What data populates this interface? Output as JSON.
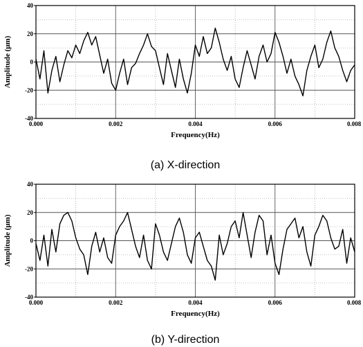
{
  "chart_data": [
    {
      "type": "line",
      "caption": "(a) X-direction",
      "xlabel": "Frequency(Hz)",
      "ylabel": "Amplitude (μm)",
      "xlim": [
        0.0,
        0.008
      ],
      "ylim": [
        -40,
        40
      ],
      "xticks": [
        "0.000",
        "0.002",
        "0.004",
        "0.006",
        "0.008"
      ],
      "yticks": [
        "40",
        "20",
        "0",
        "-20",
        "-40"
      ],
      "grid": true,
      "series": [
        {
          "color": "#000000",
          "x": [
            0.0,
            0.0001,
            0.0002,
            0.0003,
            0.0004,
            0.0005,
            0.0006,
            0.0007,
            0.0008,
            0.0009,
            0.001,
            0.0011,
            0.0012,
            0.0013,
            0.0014,
            0.0015,
            0.0016,
            0.0017,
            0.0018,
            0.0019,
            0.002,
            0.0021,
            0.0022,
            0.0023,
            0.0024,
            0.0025,
            0.0026,
            0.0027,
            0.0028,
            0.0029,
            0.003,
            0.0031,
            0.0032,
            0.0033,
            0.0034,
            0.0035,
            0.0036,
            0.0037,
            0.0038,
            0.0039,
            0.004,
            0.0041,
            0.0042,
            0.0043,
            0.0044,
            0.0045,
            0.0046,
            0.0047,
            0.0048,
            0.0049,
            0.005,
            0.0051,
            0.0052,
            0.0053,
            0.0054,
            0.0055,
            0.0056,
            0.0057,
            0.0058,
            0.0059,
            0.006,
            0.0061,
            0.0062,
            0.0063,
            0.0064,
            0.0065,
            0.0066,
            0.0067,
            0.0068,
            0.0069,
            0.007,
            0.0071,
            0.0072,
            0.0073,
            0.0074,
            0.0075,
            0.0076,
            0.0077,
            0.0078,
            0.0079,
            0.008
          ],
          "values": [
            2,
            -12,
            8,
            -22,
            -6,
            4,
            -14,
            -2,
            8,
            3,
            12,
            6,
            15,
            21,
            12,
            18,
            5,
            -8,
            2,
            -15,
            -20,
            -8,
            2,
            -16,
            -4,
            -1,
            6,
            12,
            20,
            11,
            8,
            -4,
            -16,
            6,
            -6,
            -18,
            2,
            -12,
            -22,
            -8,
            12,
            4,
            18,
            6,
            10,
            24,
            14,
            2,
            -6,
            4,
            -12,
            -18,
            -4,
            8,
            -2,
            -12,
            4,
            12,
            0,
            6,
            21,
            14,
            4,
            -8,
            2,
            -10,
            -16,
            -24,
            -6,
            4,
            12,
            -4,
            2,
            14,
            22,
            10,
            4,
            -6,
            -14,
            -6,
            -2
          ]
        }
      ]
    },
    {
      "type": "line",
      "caption": "(b) Y-direction",
      "xlabel": "Frequency(Hz)",
      "ylabel": "Amplitude (μm)",
      "xlim": [
        0.0,
        0.008
      ],
      "ylim": [
        -40,
        40
      ],
      "xticks": [
        "0.000",
        "0.002",
        "0.004",
        "0.006",
        "0.008"
      ],
      "yticks": [
        "40",
        "20",
        "0",
        "-20",
        "-40"
      ],
      "grid": true,
      "series": [
        {
          "color": "#000000",
          "x": [
            0.0,
            0.0001,
            0.0002,
            0.0003,
            0.0004,
            0.0005,
            0.0006,
            0.0007,
            0.0008,
            0.0009,
            0.001,
            0.0011,
            0.0012,
            0.0013,
            0.0014,
            0.0015,
            0.0016,
            0.0017,
            0.0018,
            0.0019,
            0.002,
            0.0021,
            0.0022,
            0.0023,
            0.0024,
            0.0025,
            0.0026,
            0.0027,
            0.0028,
            0.0029,
            0.003,
            0.0031,
            0.0032,
            0.0033,
            0.0034,
            0.0035,
            0.0036,
            0.0037,
            0.0038,
            0.0039,
            0.004,
            0.0041,
            0.0042,
            0.0043,
            0.0044,
            0.0045,
            0.0046,
            0.0047,
            0.0048,
            0.0049,
            0.005,
            0.0051,
            0.0052,
            0.0053,
            0.0054,
            0.0055,
            0.0056,
            0.0057,
            0.0058,
            0.0059,
            0.006,
            0.0061,
            0.0062,
            0.0063,
            0.0064,
            0.0065,
            0.0066,
            0.0067,
            0.0068,
            0.0069,
            0.007,
            0.0071,
            0.0072,
            0.0073,
            0.0074,
            0.0075,
            0.0076,
            0.0077,
            0.0078,
            0.0079,
            0.008
          ],
          "values": [
            -2,
            -14,
            4,
            -18,
            8,
            -8,
            12,
            18,
            20,
            14,
            2,
            -6,
            -10,
            -24,
            -4,
            6,
            -8,
            2,
            -12,
            -16,
            4,
            10,
            14,
            20,
            8,
            -4,
            -12,
            4,
            -14,
            -20,
            12,
            4,
            -8,
            -14,
            -2,
            10,
            16,
            6,
            -10,
            -16,
            2,
            6,
            -4,
            -14,
            -18,
            -28,
            4,
            -10,
            -2,
            10,
            14,
            2,
            20,
            4,
            -12,
            6,
            18,
            14,
            -10,
            4,
            -16,
            -24,
            -6,
            8,
            12,
            16,
            2,
            10,
            -8,
            -18,
            4,
            10,
            18,
            14,
            2,
            -6,
            -4,
            8,
            -16,
            2,
            -8
          ]
        }
      ]
    }
  ]
}
